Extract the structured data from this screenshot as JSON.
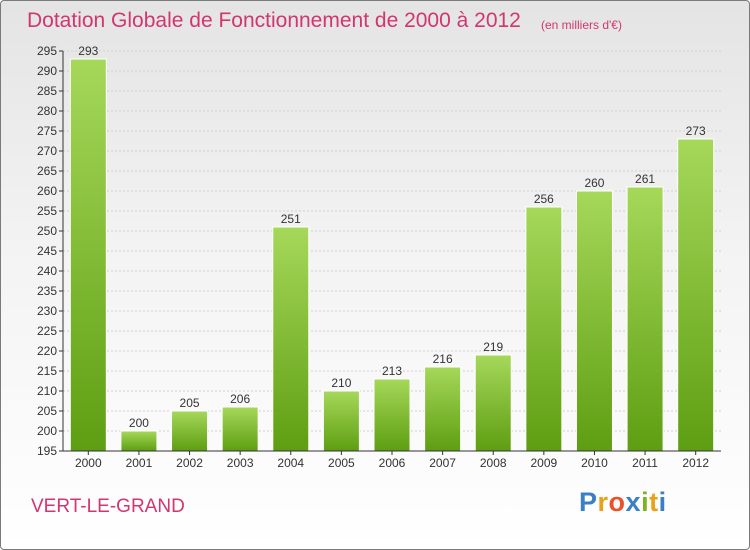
{
  "title": "Dotation Globale de Fonctionnement de 2000 à 2012",
  "unit_note": "(en milliers d'€)",
  "commune": "VERT-LE-GRAND",
  "brand": {
    "letters": [
      "P",
      "r",
      "o",
      "x",
      "i",
      "t",
      "i"
    ],
    "colors": [
      "#3b7fc4",
      "#e8a21a",
      "#e6542c",
      "#3b7fc4",
      "#7ab51d",
      "#e8a21a",
      "#3b7fc4"
    ]
  },
  "colors": {
    "bar": "#7cb82a",
    "bar_light": "#a6d85a",
    "bar_dark": "#5e9e12",
    "title": "#d2366f",
    "axis": "#333333"
  },
  "chart_data": {
    "type": "bar",
    "categories": [
      "2000",
      "2001",
      "2002",
      "2003",
      "2004",
      "2005",
      "2006",
      "2007",
      "2008",
      "2009",
      "2010",
      "2011",
      "2012"
    ],
    "values": [
      293,
      200,
      205,
      206,
      251,
      210,
      213,
      216,
      219,
      256,
      260,
      261,
      273
    ],
    "title": "Dotation Globale de Fonctionnement de 2000 à 2012",
    "xlabel": "",
    "ylabel": "",
    "ylim": [
      195,
      295
    ],
    "yticks": [
      195,
      200,
      205,
      210,
      215,
      220,
      225,
      230,
      235,
      240,
      245,
      250,
      255,
      260,
      265,
      270,
      275,
      280,
      285,
      290,
      295
    ],
    "grid": true,
    "data_labels": true
  }
}
